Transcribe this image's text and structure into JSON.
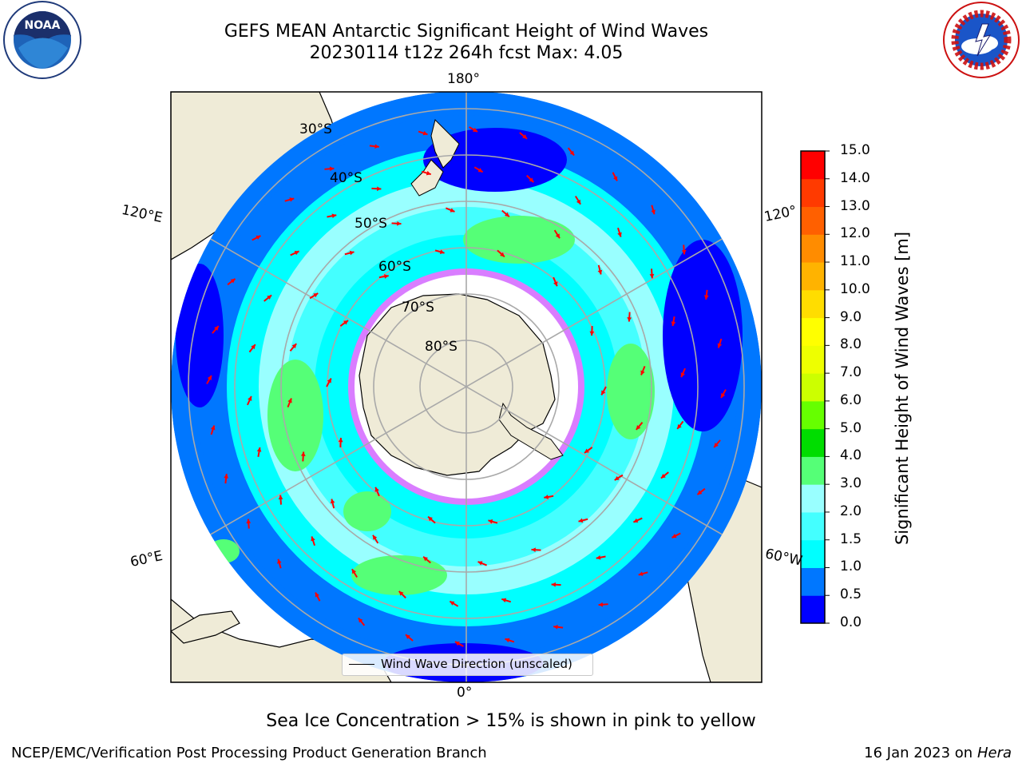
{
  "header": {
    "title_line1": "GEFS MEAN Antarctic Significant Height of Wind Waves",
    "title_line2": "20230114 t12z 264h fcst   Max: 4.05"
  },
  "logos": {
    "noaa": {
      "text": "NOAA",
      "ring_text": "NATIONAL OCEANIC AND ATMOSPHERIC ADMINISTRATION · U.S. DEPARTMENT OF COMMERCE"
    },
    "nws": {
      "ring_text": "NATIONAL WEATHER SERVICE"
    }
  },
  "map": {
    "projection": "south polar stereographic",
    "longitude_labels": {
      "top": "180°",
      "bottom": "0°",
      "left_upper": "120°E",
      "left_lower": "60°E",
      "right_upper": "120°",
      "right_lower": "60°W"
    },
    "latitude_labels": [
      "30°S",
      "40°S",
      "50°S",
      "60°S",
      "70°S",
      "80°S"
    ],
    "land_color": "#efebd7",
    "ice_colors": [
      "#ff66ff",
      "#ffff66",
      "#ffffff"
    ],
    "arrow_color": "#ff0000",
    "legend_label": "Wind Wave Direction (unscaled)"
  },
  "colorbar": {
    "title": "Significant Height of Wind Waves [m]",
    "tick_labels": [
      "0.0",
      "0.5",
      "1.0",
      "1.5",
      "2.0",
      "3.0",
      "4.0",
      "5.0",
      "6.0",
      "7.0",
      "8.0",
      "9.0",
      "10.0",
      "11.0",
      "12.0",
      "13.0",
      "14.0",
      "15.0"
    ],
    "colors": [
      "#0000ff",
      "#0077ff",
      "#00ffff",
      "#44ffff",
      "#99ffff",
      "#55ff77",
      "#00dd00",
      "#66ff00",
      "#ccff00",
      "#eeff00",
      "#ffff00",
      "#ffdd00",
      "#ffb300",
      "#ff8c00",
      "#ff6000",
      "#ff3a00",
      "#ff0000"
    ]
  },
  "notes": {
    "ice_note": "Sea Ice Concentration > 15% is shown in pink to yellow",
    "footer_left": "NCEP/EMC/Verification Post Processing Product Generation Branch",
    "footer_date": "16 Jan 2023 on ",
    "footer_host": "Hera"
  }
}
